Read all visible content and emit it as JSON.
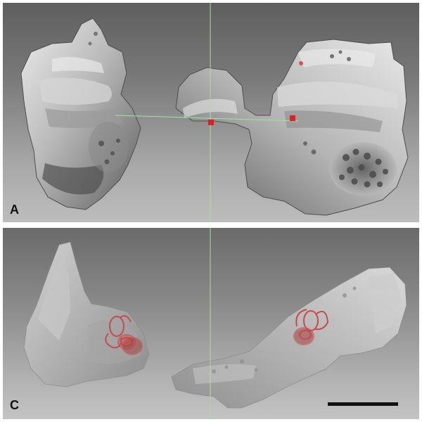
{
  "panels": [
    {
      "id": "A",
      "label": "A"
    },
    {
      "id": "C",
      "label": "C"
    }
  ],
  "colors": {
    "bone": "#c9c9c9",
    "bone_shadow": "#6e6e6e",
    "bone_highlight": "#f2f2f2",
    "crosshair": "#9be69b",
    "marker": "#e02020",
    "inner_ear": "#c84a4a"
  },
  "scale_bar": {
    "visible": true
  }
}
